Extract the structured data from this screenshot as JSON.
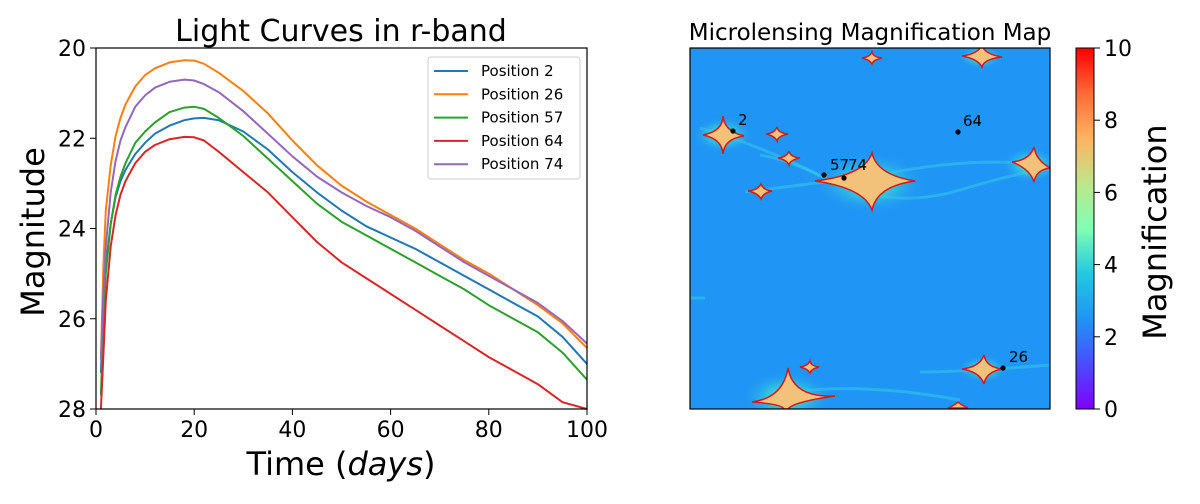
{
  "chart_data": [
    {
      "type": "line",
      "title": "Light Curves in r-band",
      "xlabel": "Time",
      "xlabel_unit": "days",
      "ylabel": "Magnitude",
      "xlim": [
        0,
        100
      ],
      "ylim": [
        28,
        20
      ],
      "y_inverted": true,
      "grid": false,
      "legend_position": "top-right",
      "x_ticks": [
        0,
        20,
        40,
        60,
        80,
        100
      ],
      "y_ticks": [
        20,
        22,
        24,
        26,
        28
      ],
      "x": [
        1,
        1.5,
        2,
        3,
        4,
        5,
        6,
        8,
        10,
        12,
        15,
        18,
        20,
        22,
        25,
        30,
        35,
        40,
        45,
        50,
        55,
        60,
        65,
        70,
        75,
        80,
        85,
        90,
        95,
        100
      ],
      "series": [
        {
          "name": "Position 2",
          "color": "#1f77b4",
          "values": [
            27.2,
            25.6,
            24.8,
            23.9,
            23.3,
            22.95,
            22.7,
            22.35,
            22.1,
            21.9,
            21.72,
            21.6,
            21.56,
            21.55,
            21.6,
            21.85,
            22.25,
            22.75,
            23.2,
            23.6,
            23.95,
            24.2,
            24.45,
            24.75,
            25.05,
            25.35,
            25.65,
            25.95,
            26.4,
            27.0
          ]
        },
        {
          "name": "Position 26",
          "color": "#ff7f0e",
          "values": [
            26.9,
            24.8,
            23.6,
            22.6,
            21.95,
            21.55,
            21.25,
            20.85,
            20.6,
            20.45,
            20.32,
            20.27,
            20.28,
            20.35,
            20.55,
            20.95,
            21.45,
            22.05,
            22.6,
            23.05,
            23.4,
            23.7,
            24.0,
            24.35,
            24.7,
            25.0,
            25.35,
            25.7,
            26.1,
            26.65
          ]
        },
        {
          "name": "Position 57",
          "color": "#2ca02c",
          "values": [
            27.7,
            26.0,
            25.0,
            23.9,
            23.25,
            22.85,
            22.55,
            22.1,
            21.85,
            21.65,
            21.42,
            21.32,
            21.3,
            21.35,
            21.55,
            21.95,
            22.45,
            22.95,
            23.45,
            23.85,
            24.15,
            24.45,
            24.75,
            25.05,
            25.35,
            25.7,
            26.0,
            26.3,
            26.75,
            27.35
          ]
        },
        {
          "name": "Position 64",
          "color": "#d62728",
          "values": [
            28.0,
            26.8,
            25.6,
            24.4,
            23.7,
            23.25,
            22.95,
            22.55,
            22.3,
            22.15,
            22.02,
            21.97,
            21.98,
            22.05,
            22.3,
            22.75,
            23.2,
            23.75,
            24.3,
            24.75,
            25.1,
            25.45,
            25.8,
            26.15,
            26.5,
            26.85,
            27.15,
            27.45,
            27.85,
            28.0
          ]
        },
        {
          "name": "Position 74",
          "color": "#9467bd",
          "values": [
            26.9,
            25.4,
            24.4,
            23.2,
            22.5,
            22.05,
            21.75,
            21.3,
            21.05,
            20.88,
            20.75,
            20.7,
            20.72,
            20.8,
            20.98,
            21.4,
            21.9,
            22.4,
            22.85,
            23.2,
            23.5,
            23.75,
            24.05,
            24.4,
            24.75,
            25.05,
            25.35,
            25.65,
            26.05,
            26.55
          ]
        }
      ]
    },
    {
      "type": "heatmap",
      "title": "Microlensing Magnification Map",
      "colorbar_label": "Magnification",
      "colorbar_range": [
        0,
        10
      ],
      "colorbar_ticks": [
        0,
        2,
        4,
        6,
        8,
        10
      ],
      "colormap": "rainbow",
      "background_magnification": 2.5,
      "axes_ticks_hidden": true,
      "marked_positions": [
        {
          "label": "2"
        },
        {
          "label": "64"
        },
        {
          "label": "57"
        },
        {
          "label": "74"
        },
        {
          "label": "26"
        }
      ]
    }
  ]
}
